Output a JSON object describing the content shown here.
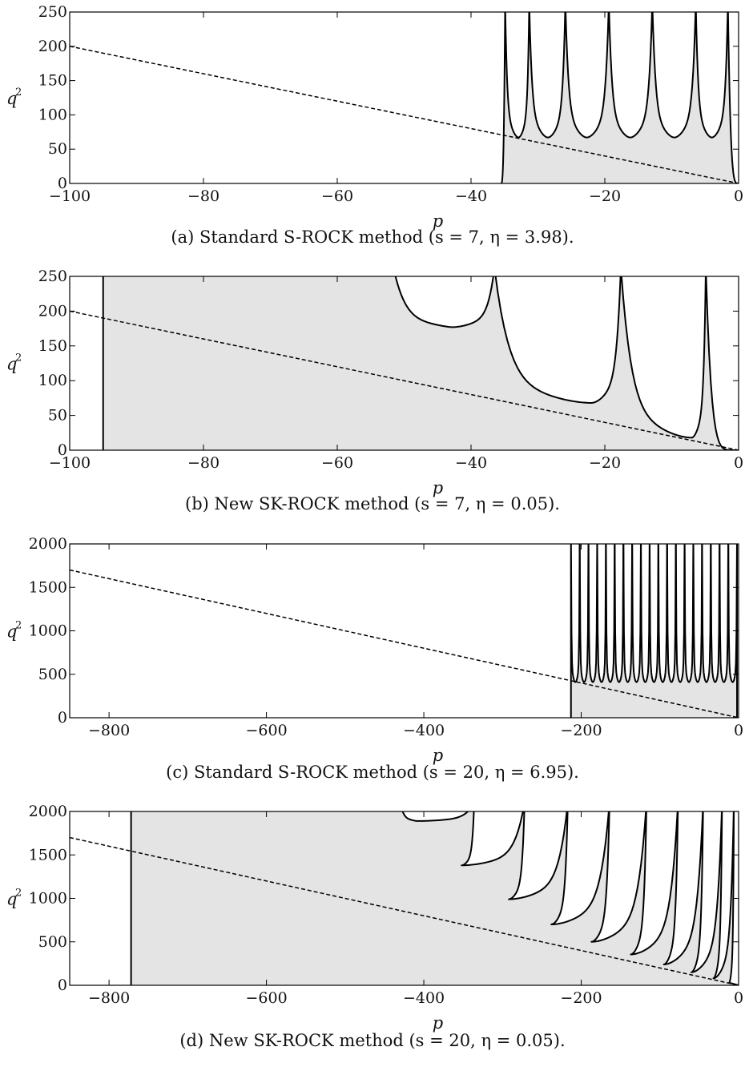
{
  "chart_data": [
    {
      "type": "area",
      "caption": "(a) Standard S-ROCK method (s = 7, η = 3.98).",
      "xlabel": "p",
      "ylabel": "q",
      "ylabel_sup": "2",
      "xlim": [
        -100,
        0
      ],
      "ylim": [
        0,
        250
      ],
      "xticks": [
        -100,
        -80,
        -60,
        -40,
        -20,
        0
      ],
      "yticks": [
        0,
        50,
        100,
        150,
        200,
        250
      ],
      "xtick_labels": [
        "−100",
        "−80",
        "−60",
        "−40",
        "−20",
        "0"
      ],
      "ytick_labels": [
        "0",
        "50",
        "100",
        "150",
        "200",
        "250"
      ],
      "dashed_line": {
        "from": [
          -100,
          200
        ],
        "to": [
          0,
          0
        ]
      },
      "left_boundary": -35.5,
      "spikes": [
        -34.9,
        -31.3,
        -25.9,
        -19.4,
        -12.9,
        -6.4,
        -1.6
      ],
      "minima": [
        {
          "p": -32.9,
          "q2": 67
        },
        {
          "p": -28.5,
          "q2": 67
        },
        {
          "p": -22.7,
          "q2": 67
        },
        {
          "p": -16.2,
          "q2": 67
        },
        {
          "p": -9.6,
          "q2": 67
        },
        {
          "p": -4.0,
          "q2": 67
        }
      ]
    },
    {
      "type": "area",
      "caption": "(b) New SK-ROCK method (s = 7, η = 0.05).",
      "xlabel": "p",
      "ylabel": "q",
      "ylabel_sup": "2",
      "xlim": [
        -100,
        0
      ],
      "ylim": [
        0,
        250
      ],
      "xticks": [
        -100,
        -80,
        -60,
        -40,
        -20,
        0
      ],
      "yticks": [
        0,
        50,
        100,
        150,
        200,
        250
      ],
      "xtick_labels": [
        "−100",
        "−80",
        "−60",
        "−40",
        "−20",
        "0"
      ],
      "ytick_labels": [
        "0",
        "50",
        "100",
        "150",
        "200",
        "250"
      ],
      "dashed_line": {
        "from": [
          -100,
          200
        ],
        "to": [
          0,
          0
        ]
      },
      "left_boundary": -95,
      "spikes": [
        -36.5,
        -17.6,
        -4.9
      ],
      "minima": [
        {
          "p": -42.8,
          "q2": 177
        },
        {
          "p": -22,
          "q2": 68
        },
        {
          "p": -7,
          "q2": 18
        }
      ],
      "top_entry": -51.6,
      "tail_end": -0.5
    },
    {
      "type": "area",
      "caption": "(c) Standard S-ROCK method (s = 20, η = 6.95).",
      "xlabel": "p",
      "ylabel": "q",
      "ylabel_sup": "2",
      "xlim": [
        -850,
        0
      ],
      "ylim": [
        0,
        2000
      ],
      "xticks": [
        -800,
        -600,
        -400,
        -200,
        0
      ],
      "yticks": [
        0,
        500,
        1000,
        1500,
        2000
      ],
      "xtick_labels": [
        "−800",
        "−600",
        "−400",
        "−200",
        "0"
      ],
      "ytick_labels": [
        "0",
        "500",
        "1000",
        "1500",
        "2000"
      ],
      "dashed_line": {
        "from": [
          -850,
          1700
        ],
        "to": [
          0,
          0
        ]
      },
      "left_boundary": -213,
      "spike_count": 19,
      "minima_level": 410
    },
    {
      "type": "area",
      "caption": "(d) New SK-ROCK method (s = 20, η = 0.05).",
      "xlabel": "p",
      "ylabel": "q",
      "ylabel_sup": "2",
      "xlim": [
        -850,
        0
      ],
      "ylim": [
        0,
        2000
      ],
      "xticks": [
        -800,
        -600,
        -400,
        -200,
        0
      ],
      "yticks": [
        0,
        500,
        1000,
        1500,
        2000
      ],
      "xtick_labels": [
        "−800",
        "−600",
        "−400",
        "−200",
        "0"
      ],
      "ytick_labels": [
        "0",
        "500",
        "1000",
        "1500",
        "2000"
      ],
      "dashed_line": {
        "from": [
          -850,
          1700
        ],
        "to": [
          0,
          0
        ]
      },
      "left_boundary": -772,
      "spikes": [
        -336,
        -272,
        -217,
        -164,
        -117,
        -77,
        -45,
        -21,
        -6
      ],
      "minima": [
        {
          "p": -408,
          "q2": 1890
        },
        {
          "p": -352,
          "q2": 1380
        },
        {
          "p": -292,
          "q2": 990
        },
        {
          "p": -238,
          "q2": 700
        },
        {
          "p": -187,
          "q2": 500
        },
        {
          "p": -137,
          "q2": 355
        },
        {
          "p": -95,
          "q2": 240
        },
        {
          "p": -60,
          "q2": 150
        },
        {
          "p": -32,
          "q2": 80
        },
        {
          "p": -12,
          "q2": 30
        }
      ],
      "top_entry": -430,
      "tail_end": -2
    }
  ]
}
